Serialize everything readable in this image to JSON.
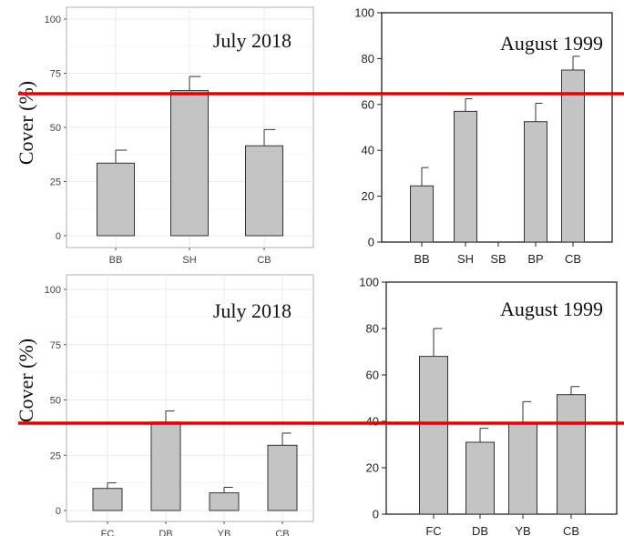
{
  "ylabel": "Cover (%)",
  "colors": {
    "bar": "#c4c4c4",
    "bar_stroke": "#333333",
    "ref_line": "#e60000",
    "grid": "#ebebeb"
  },
  "chart_data": [
    {
      "type": "bar",
      "title": "July 2018",
      "categories": [
        "BB",
        "SH",
        "CB"
      ],
      "values": [
        33.5,
        67,
        41.5
      ],
      "errors": [
        6,
        6.5,
        7.5
      ],
      "ylim": [
        0,
        100
      ],
      "yticks": [
        0,
        25,
        50,
        75,
        100
      ],
      "grid": true
    },
    {
      "type": "bar",
      "title": "August 1999",
      "categories": [
        "BB",
        "SH",
        "SB",
        "BP",
        "CB"
      ],
      "values": [
        24.5,
        57,
        0,
        52.5,
        75
      ],
      "errors": [
        8,
        5.5,
        0,
        8,
        6
      ],
      "ylim": [
        0,
        100
      ],
      "yticks": [
        0,
        20,
        40,
        60,
        80,
        100
      ],
      "grid": false
    },
    {
      "type": "bar",
      "title": "July 2018",
      "categories": [
        "FC",
        "DB",
        "YB",
        "CB"
      ],
      "values": [
        10,
        40,
        8,
        29.5
      ],
      "errors": [
        2.5,
        5,
        2.5,
        5.5
      ],
      "ylim": [
        0,
        100
      ],
      "yticks": [
        0,
        25,
        50,
        75,
        100
      ],
      "grid": true
    },
    {
      "type": "bar",
      "title": "August 1999",
      "categories": [
        "FC",
        "DB",
        "YB",
        "CB"
      ],
      "values": [
        68,
        31,
        39.5,
        51.5
      ],
      "errors": [
        12,
        6,
        9,
        3.5
      ],
      "ylim": [
        0,
        100
      ],
      "yticks": [
        0,
        20,
        40,
        60,
        80,
        100
      ],
      "grid": false
    }
  ]
}
